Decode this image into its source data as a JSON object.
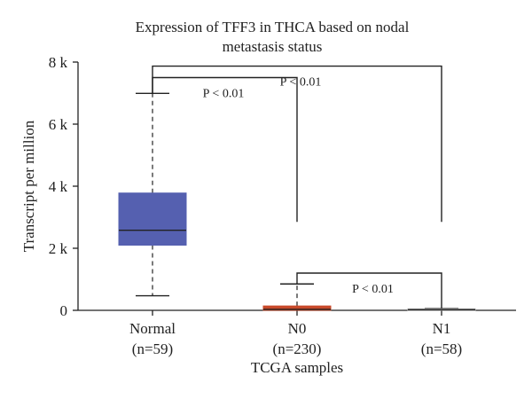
{
  "chart_data": {
    "type": "box",
    "title_lines": [
      "Expression of TFF3 in THCA based on nodal",
      "metastasis status"
    ],
    "ylabel": "Transcript per million",
    "xlabel": "TCGA samples",
    "ylim": [
      0,
      8000
    ],
    "yticks": [
      {
        "value": 0,
        "label": "0"
      },
      {
        "value": 2000,
        "label": "2 k"
      },
      {
        "value": 4000,
        "label": "4 k"
      },
      {
        "value": 6000,
        "label": "6 k"
      },
      {
        "value": 8000,
        "label": "8 k"
      }
    ],
    "groups": [
      {
        "name": "Normal",
        "n_label": "(n=59)",
        "color": "#5560b0",
        "whisker_low": 470,
        "q1": 2100,
        "median": 2580,
        "q3": 3780,
        "whisker_high": 6990
      },
      {
        "name": "N0",
        "n_label": "(n=230)",
        "color": "#c8492a",
        "whisker_low": 0,
        "q1": 0,
        "median": 30,
        "q3": 140,
        "whisker_high": 850
      },
      {
        "name": "N1",
        "n_label": "(n=58)",
        "color": "#b0b0b0",
        "whisker_low": 0,
        "q1": 0,
        "median": 20,
        "q3": 50,
        "whisker_high": 60
      }
    ],
    "comparisons": [
      {
        "from": 0,
        "to": 1,
        "label": "P < 0.01",
        "bracket_y": 7500,
        "from_drop": 7000,
        "to_drop": 2850
      },
      {
        "from": 0,
        "to": 2,
        "label": "P < 0.01",
        "bracket_y": 7870,
        "from_drop": 7000,
        "to_drop": 2850
      },
      {
        "from": 1,
        "to": 2,
        "label": "P < 0.01",
        "bracket_y": 1200,
        "from_drop": 850,
        "to_drop": 60
      }
    ],
    "grid": false,
    "legend": "none"
  }
}
